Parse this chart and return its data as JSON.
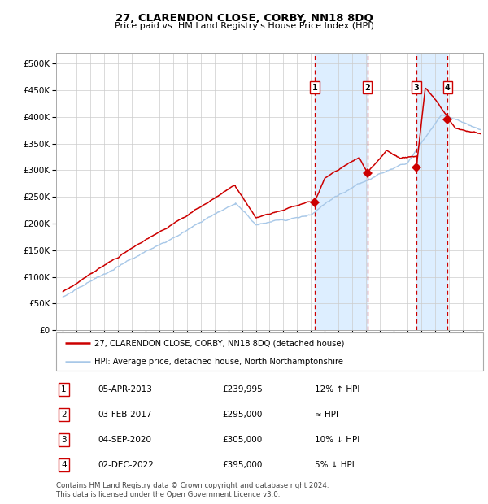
{
  "title": "27, CLARENDON CLOSE, CORBY, NN18 8DQ",
  "subtitle": "Price paid vs. HM Land Registry's House Price Index (HPI)",
  "ylabel_ticks": [
    "£0",
    "£50K",
    "£100K",
    "£150K",
    "£200K",
    "£250K",
    "£300K",
    "£350K",
    "£400K",
    "£450K",
    "£500K"
  ],
  "ytick_values": [
    0,
    50000,
    100000,
    150000,
    200000,
    250000,
    300000,
    350000,
    400000,
    450000,
    500000
  ],
  "xlim": [
    1994.5,
    2025.5
  ],
  "ylim": [
    0,
    520000
  ],
  "sale_dates": [
    2013.27,
    2017.09,
    2020.67,
    2022.92
  ],
  "sale_prices": [
    239995,
    295000,
    305000,
    395000
  ],
  "sale_labels": [
    "1",
    "2",
    "3",
    "4"
  ],
  "red_line_color": "#cc0000",
  "blue_line_color": "#a8c8e8",
  "shade_color": "#ddeeff",
  "dashed_color": "#cc0000",
  "background_color": "#ffffff",
  "grid_color": "#cccccc",
  "legend_entries": [
    "27, CLARENDON CLOSE, CORBY, NN18 8DQ (detached house)",
    "HPI: Average price, detached house, North Northamptonshire"
  ],
  "table_rows": [
    [
      "1",
      "05-APR-2013",
      "£239,995",
      "12% ↑ HPI"
    ],
    [
      "2",
      "03-FEB-2017",
      "£295,000",
      "≈ HPI"
    ],
    [
      "3",
      "04-SEP-2020",
      "£305,000",
      "10% ↓ HPI"
    ],
    [
      "4",
      "02-DEC-2022",
      "£395,000",
      "5% ↓ HPI"
    ]
  ],
  "footer": "Contains HM Land Registry data © Crown copyright and database right 2024.\nThis data is licensed under the Open Government Licence v3.0."
}
